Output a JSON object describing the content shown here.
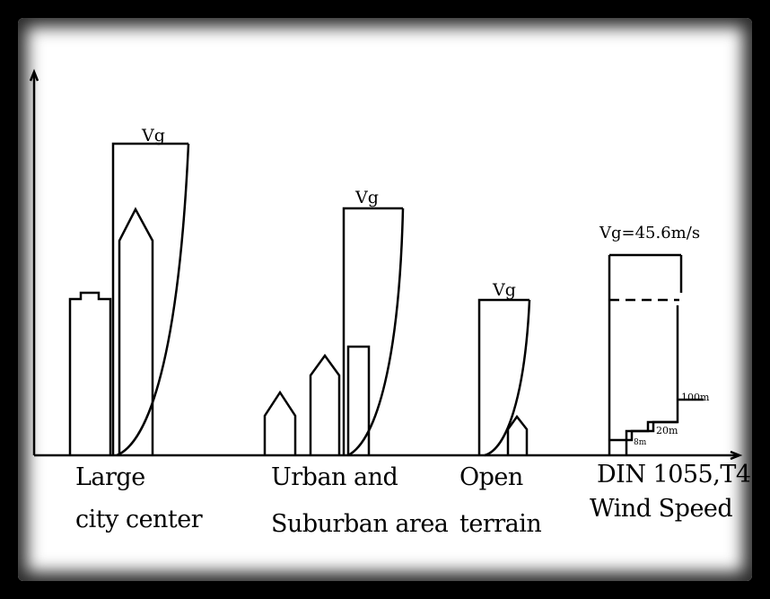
{
  "labels": {
    "large_city_1": "Large",
    "large_city_2": "city center",
    "urban_1": "Urban and",
    "urban_2": "Suburban area",
    "open_1": "Open",
    "open_2": "terrain",
    "din_1": "DIN 1055,T4",
    "din_2": "Wind Speed"
  },
  "annotations": {
    "vg_city": "Vg",
    "vg_urban": "Vg",
    "vg_open": "Vg",
    "vg_din": "Vg=45.6m/s",
    "h100": "100m",
    "h20": "20m",
    "h8": "8m"
  },
  "colors": {
    "ink": "#000000",
    "paper": "#ffffff",
    "background": "#000000"
  }
}
